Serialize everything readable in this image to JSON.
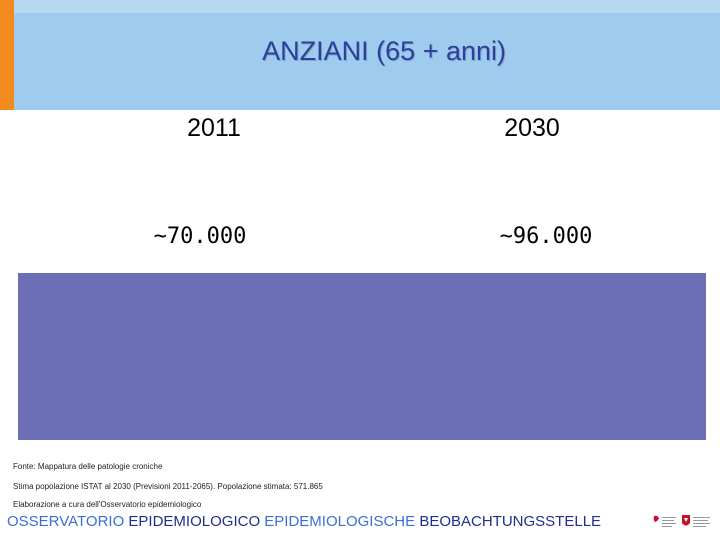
{
  "header": {
    "title": "ANZIANI (65 + anni)"
  },
  "columns": [
    {
      "year": "2011",
      "value": "~70.000"
    },
    {
      "year": "2030",
      "value": "~96.000"
    }
  ],
  "source": {
    "line1": "Fonte: Mappatura delle patologie croniche",
    "line2": "Stima popolazione ISTAT al 2030 (Previsioni 2011-2065). Popolazione stimata: 571.865",
    "line3": "Elaborazione a cura dell'Osservatorio epidemiologico"
  },
  "footer": {
    "part1": "OSSERVATORIO ",
    "part2": "EPIDEMIOLOGICO ",
    "part3": "EPIDEMIOLOGISCHE ",
    "part4": "BEOBACHTUNGSSTELLE"
  },
  "colors": {
    "header_bg": "#9ecbee",
    "accent_orange": "#f28a1e",
    "block_purple": "#6c6fb6",
    "title_text": "#2f3e9a"
  }
}
